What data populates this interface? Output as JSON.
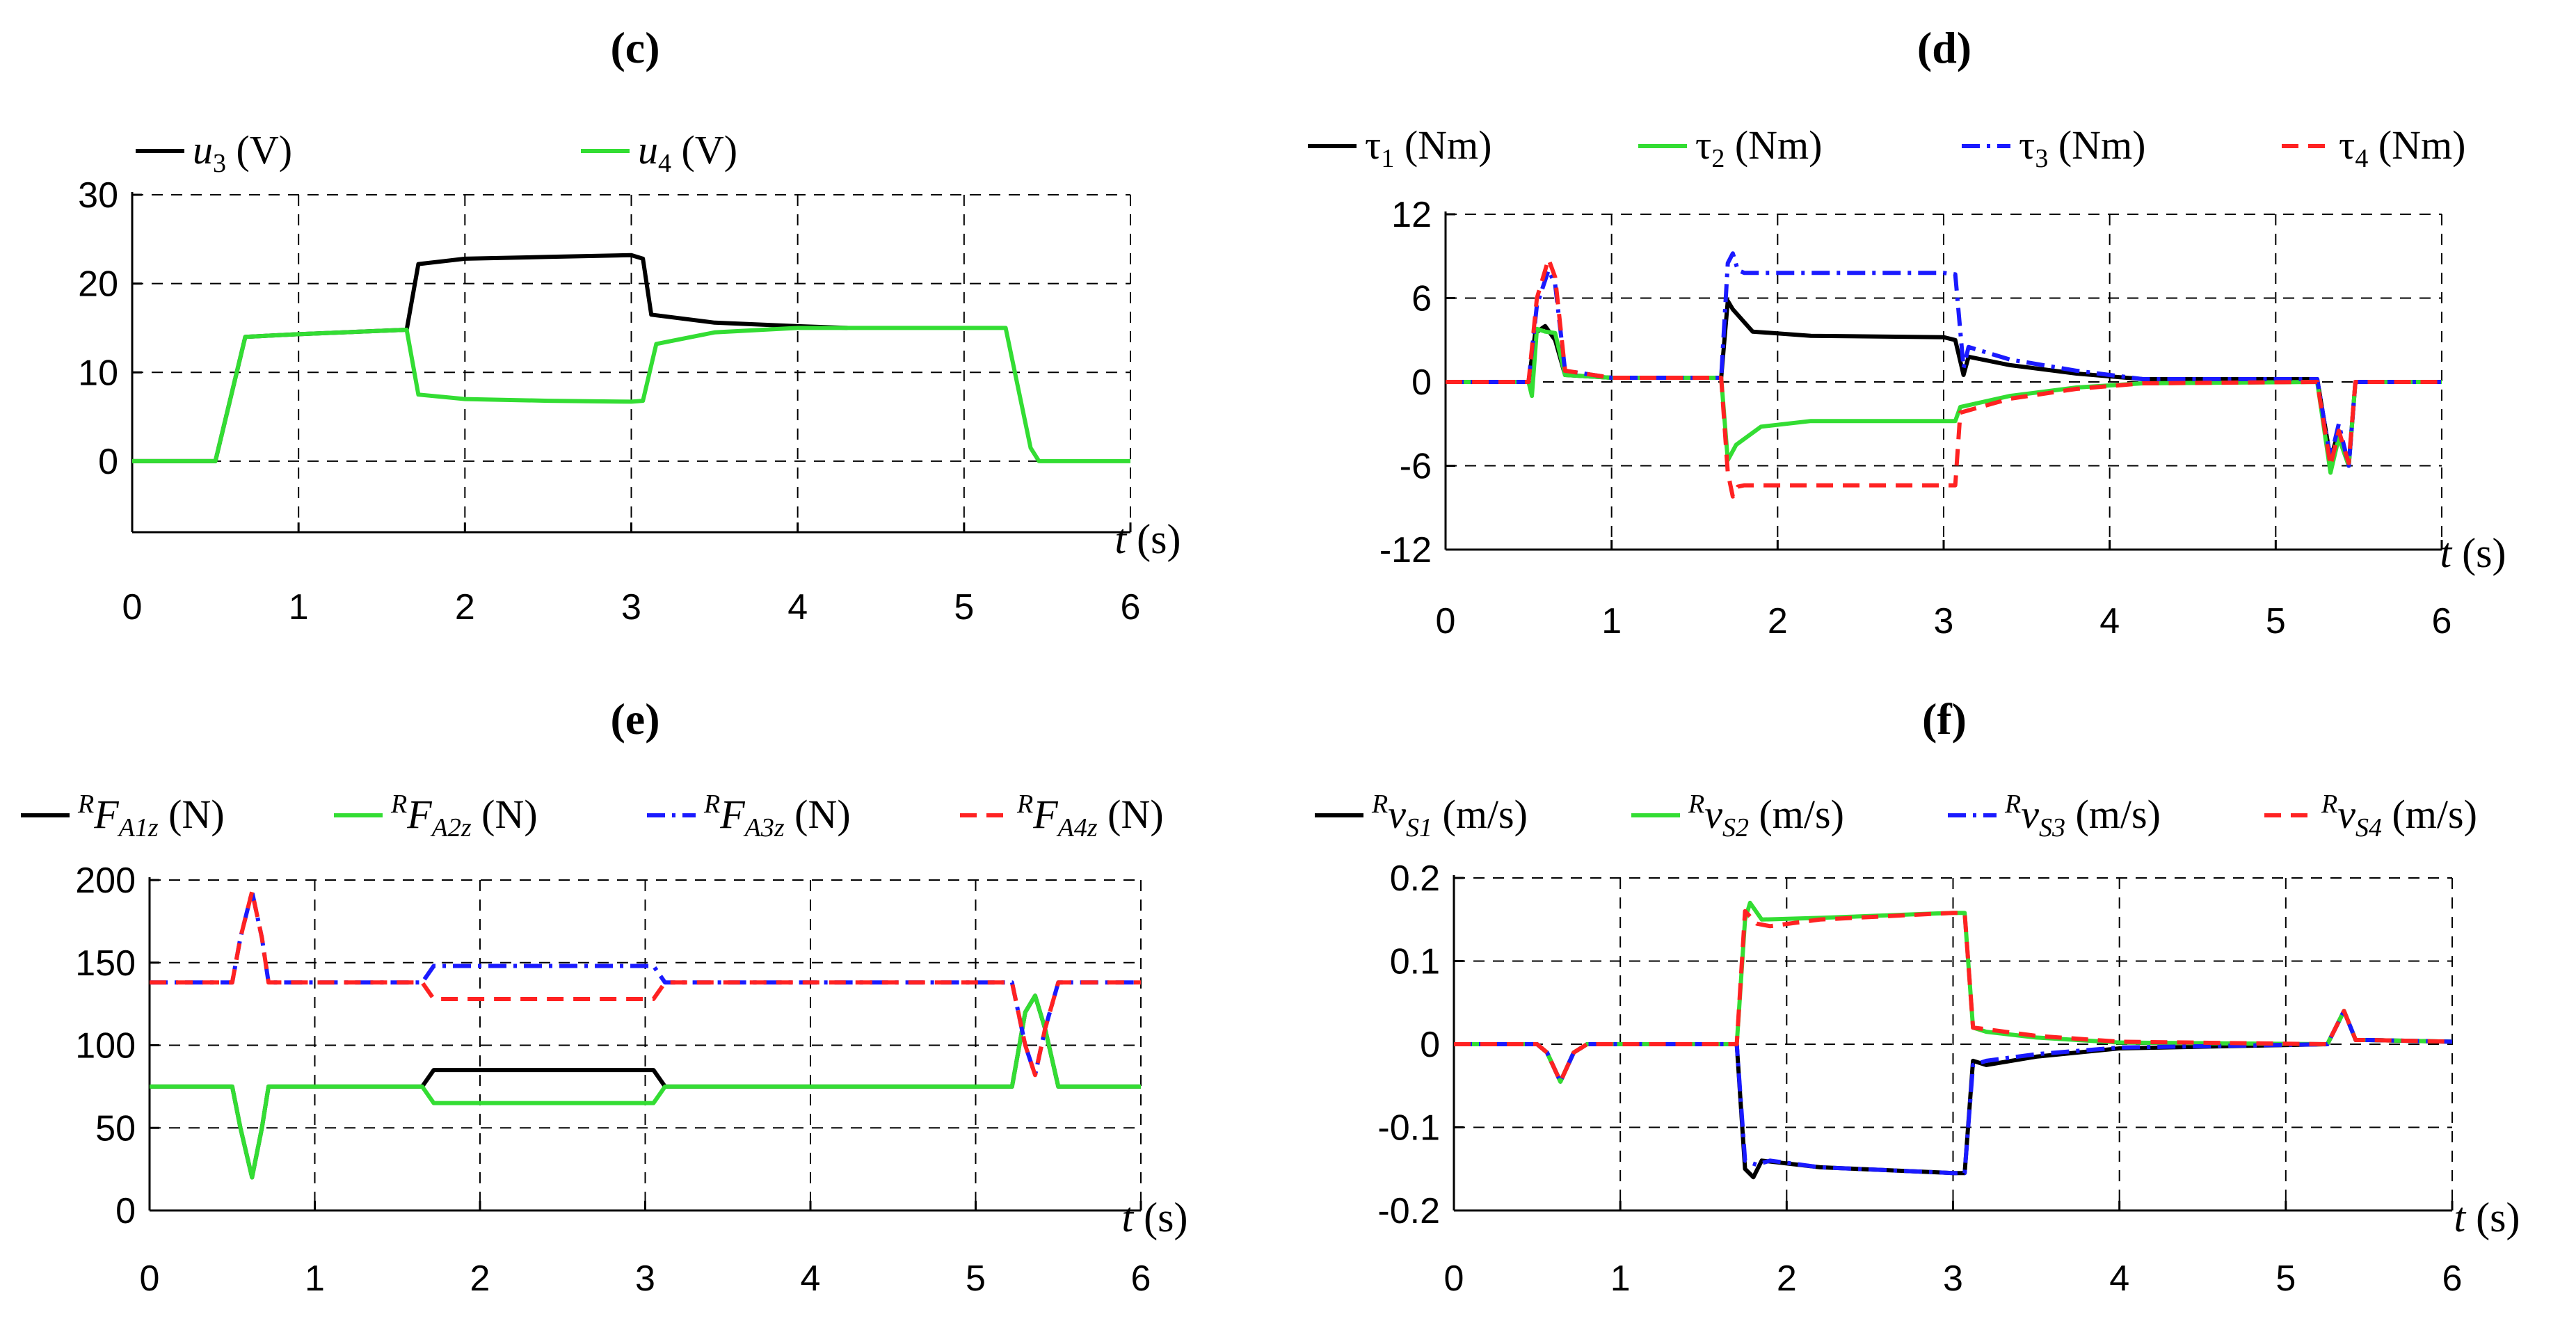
{
  "chart_data": [
    {
      "panel": "(c)",
      "type": "line",
      "title": "(c)",
      "xlabel": "t (s)",
      "ylabel": "",
      "xlim": [
        0,
        6
      ],
      "ylim": [
        -8,
        30
      ],
      "xticks": [
        0,
        1,
        2,
        3,
        4,
        5,
        6
      ],
      "xtick_labels": [
        "0",
        "1",
        "2",
        "3",
        "4",
        "5",
        "6"
      ],
      "yticks": [
        0,
        10,
        20,
        30
      ],
      "ytick_labels": [
        "0",
        "10",
        "20",
        "30"
      ],
      "grid": true,
      "legend_position": "top",
      "series": [
        {
          "name": "u3 (V)",
          "legend_main": "u",
          "legend_sub": "3",
          "legend_unit": " (V)",
          "color": "#000000",
          "dash": "solid",
          "x": [
            0,
            0.5,
            0.68,
            1.0,
            1.65,
            1.72,
            2.0,
            2.5,
            3.0,
            3.07,
            3.12,
            3.5,
            4.0,
            4.3
          ],
          "y": [
            0,
            0,
            14,
            14.3,
            14.8,
            22.2,
            22.8,
            23.0,
            23.2,
            22.8,
            16.5,
            15.6,
            15.2,
            15.0
          ]
        },
        {
          "name": "u4 (V)",
          "legend_main": "u",
          "legend_sub": "4",
          "legend_unit": " (V)",
          "color": "#33dd33",
          "dash": "solid",
          "x": [
            0,
            0.5,
            0.68,
            1.0,
            1.65,
            1.72,
            2.0,
            2.5,
            3.0,
            3.07,
            3.15,
            3.5,
            4.0,
            5.25,
            5.4,
            5.45,
            6.0
          ],
          "y": [
            0,
            0,
            14,
            14.3,
            14.8,
            7.5,
            7.0,
            6.8,
            6.7,
            6.8,
            13.2,
            14.5,
            15.0,
            15.0,
            1.5,
            0,
            0
          ]
        }
      ]
    },
    {
      "panel": "(d)",
      "type": "line",
      "title": "(d)",
      "xlabel": "t (s)",
      "ylabel": "",
      "xlim": [
        0,
        6
      ],
      "ylim": [
        -12,
        12
      ],
      "xticks": [
        0,
        1,
        2,
        3,
        4,
        5,
        6
      ],
      "xtick_labels": [
        "0",
        "1",
        "2",
        "3",
        "4",
        "5",
        "6"
      ],
      "yticks": [
        -12,
        -6,
        0,
        6,
        12
      ],
      "ytick_labels": [
        "-12",
        "-6",
        "0",
        "6",
        "12"
      ],
      "grid": true,
      "legend_position": "top",
      "series": [
        {
          "name": "τ1 (Nm)",
          "legend_main": "τ",
          "legend_sub": "1",
          "legend_unit": " (Nm)",
          "color": "#000000",
          "dash": "solid",
          "x": [
            0,
            0.5,
            0.54,
            0.6,
            0.66,
            0.72,
            1.0,
            1.66,
            1.7,
            1.73,
            1.85,
            2.2,
            3.0,
            3.07,
            3.12,
            3.15,
            3.4,
            3.8,
            4.2,
            5.25,
            5.33,
            5.38,
            5.44,
            5.48,
            6.0
          ],
          "y": [
            0,
            0,
            3.5,
            4.0,
            3.0,
            0.5,
            0.3,
            0.3,
            5.8,
            5.2,
            3.6,
            3.3,
            3.2,
            3.0,
            0.5,
            1.8,
            1.2,
            0.6,
            0.2,
            0.2,
            -5.5,
            -3.5,
            -6.0,
            0,
            0
          ]
        },
        {
          "name": "τ2 (Nm)",
          "legend_main": "τ",
          "legend_sub": "2",
          "legend_unit": " (Nm)",
          "color": "#33dd33",
          "dash": "solid",
          "x": [
            0,
            0.5,
            0.52,
            0.55,
            0.6,
            0.66,
            0.72,
            1.0,
            1.66,
            1.7,
            1.75,
            1.9,
            2.2,
            3.0,
            3.07,
            3.1,
            3.4,
            3.8,
            4.2,
            5.25,
            5.33,
            5.38,
            5.44,
            5.48,
            6.0
          ],
          "y": [
            0,
            0,
            -1.0,
            3.8,
            3.6,
            3.5,
            0.5,
            0.3,
            0.3,
            -5.6,
            -4.5,
            -3.2,
            -2.8,
            -2.8,
            -2.8,
            -1.8,
            -1.0,
            -0.4,
            -0.1,
            0,
            -6.5,
            -4.0,
            -6.0,
            0,
            0
          ]
        },
        {
          "name": "τ3 (Nm)",
          "legend_main": "τ",
          "legend_sub": "3",
          "legend_unit": " (Nm)",
          "color": "#1a1aff",
          "dash": "dashdot",
          "x": [
            0,
            0.5,
            0.55,
            0.62,
            0.66,
            0.72,
            1.0,
            1.66,
            1.7,
            1.73,
            1.76,
            1.8,
            2.2,
            3.0,
            3.07,
            3.12,
            3.15,
            3.4,
            3.8,
            4.2,
            5.25,
            5.33,
            5.38,
            5.44,
            5.48,
            6.0
          ],
          "y": [
            0,
            0,
            5.5,
            8.0,
            7.0,
            0.8,
            0.3,
            0.3,
            8.5,
            9.2,
            8.0,
            7.8,
            7.8,
            7.8,
            7.7,
            1.0,
            2.5,
            1.6,
            0.8,
            0.2,
            0.2,
            -5.5,
            -3.0,
            -6.0,
            0,
            0
          ]
        },
        {
          "name": "τ4 (Nm)",
          "legend_main": "τ",
          "legend_sub": "4",
          "legend_unit": " (Nm)",
          "color": "#ff2222",
          "dash": "dashed",
          "x": [
            0,
            0.5,
            0.55,
            0.62,
            0.66,
            0.72,
            1.0,
            1.66,
            1.7,
            1.73,
            1.76,
            1.8,
            2.2,
            3.0,
            3.07,
            3.1,
            3.4,
            3.8,
            4.2,
            5.25,
            5.33,
            5.38,
            5.44,
            5.48,
            6.0
          ],
          "y": [
            0,
            0,
            6.0,
            8.8,
            7.5,
            0.8,
            0.3,
            0.3,
            -6.5,
            -8.2,
            -7.5,
            -7.4,
            -7.4,
            -7.4,
            -7.4,
            -2.2,
            -1.2,
            -0.5,
            -0.1,
            0,
            -6.0,
            -3.5,
            -5.8,
            0,
            0
          ]
        }
      ]
    },
    {
      "panel": "(e)",
      "type": "line",
      "title": "(e)",
      "xlabel": "t (s)",
      "ylabel": "",
      "xlim": [
        0,
        6
      ],
      "ylim": [
        0,
        200
      ],
      "xticks": [
        0,
        1,
        2,
        3,
        4,
        5,
        6
      ],
      "xtick_labels": [
        "0",
        "1",
        "2",
        "3",
        "4",
        "5",
        "6"
      ],
      "yticks": [
        0,
        50,
        100,
        150,
        200
      ],
      "ytick_labels": [
        "0",
        "50",
        "100",
        "150",
        "200"
      ],
      "grid": true,
      "legend_position": "top",
      "series": [
        {
          "name": "RFA1z (N)",
          "legend_pre": "R",
          "legend_main": "F",
          "legend_sub": "A1z",
          "legend_unit": " (N)",
          "color": "#000000",
          "dash": "solid",
          "x": [
            0,
            0.5,
            0.55,
            0.62,
            0.68,
            0.72,
            1.65,
            1.72,
            3.05,
            3.12,
            5.22,
            5.3,
            5.36,
            5.42,
            5.5,
            6.0
          ],
          "y": [
            75,
            75,
            50,
            20,
            50,
            75,
            75,
            85,
            85,
            75,
            75,
            120,
            130,
            110,
            75,
            75
          ]
        },
        {
          "name": "RFA2z (N)",
          "legend_pre": "R",
          "legend_main": "F",
          "legend_sub": "A2z",
          "legend_unit": " (N)",
          "color": "#33dd33",
          "dash": "solid",
          "x": [
            0,
            0.5,
            0.55,
            0.62,
            0.68,
            0.72,
            1.65,
            1.72,
            3.05,
            3.12,
            5.22,
            5.3,
            5.36,
            5.42,
            5.5,
            6.0
          ],
          "y": [
            75,
            75,
            50,
            20,
            50,
            75,
            75,
            65,
            65,
            75,
            75,
            120,
            130,
            110,
            75,
            75
          ]
        },
        {
          "name": "RFA3z (N)",
          "legend_pre": "R",
          "legend_main": "F",
          "legend_sub": "A3z",
          "legend_unit": " (N)",
          "color": "#1a1aff",
          "dash": "dashdot",
          "x": [
            0,
            0.5,
            0.55,
            0.62,
            0.68,
            0.72,
            1.65,
            1.72,
            3.05,
            3.12,
            5.22,
            5.3,
            5.36,
            5.42,
            5.5,
            6.0
          ],
          "y": [
            138,
            138,
            165,
            193,
            165,
            138,
            138,
            148,
            148,
            138,
            138,
            100,
            82,
            110,
            138,
            138
          ]
        },
        {
          "name": "RFA4z (N)",
          "legend_pre": "R",
          "legend_main": "F",
          "legend_sub": "A4z",
          "legend_unit": " (N)",
          "color": "#ff2222",
          "dash": "dashed",
          "x": [
            0,
            0.5,
            0.55,
            0.62,
            0.68,
            0.72,
            1.65,
            1.72,
            3.05,
            3.12,
            5.22,
            5.3,
            5.36,
            5.42,
            5.5,
            6.0
          ],
          "y": [
            138,
            138,
            165,
            193,
            165,
            138,
            138,
            128,
            128,
            138,
            138,
            100,
            82,
            110,
            138,
            138
          ]
        }
      ]
    },
    {
      "panel": "(f)",
      "type": "line",
      "title": "(f)",
      "xlabel": "t (s)",
      "ylabel": "",
      "xlim": [
        0,
        6
      ],
      "ylim": [
        -0.2,
        0.2
      ],
      "xticks": [
        0,
        1,
        2,
        3,
        4,
        5,
        6
      ],
      "xtick_labels": [
        "0",
        "1",
        "2",
        "3",
        "4",
        "5",
        "6"
      ],
      "yticks": [
        -0.2,
        -0.1,
        0,
        0.1,
        0.2
      ],
      "ytick_labels": [
        "-0.2",
        "-0.1",
        "0",
        "0.1",
        "0.2"
      ],
      "grid": true,
      "legend_position": "top",
      "series": [
        {
          "name": "RvS1 (m/s)",
          "legend_pre": "R",
          "legend_main": "v",
          "legend_sub": "S1",
          "legend_unit": " (m/s)",
          "color": "#000000",
          "dash": "solid",
          "x": [
            0,
            0.5,
            0.56,
            0.64,
            0.72,
            0.8,
            1.7,
            1.75,
            1.8,
            1.85,
            2.2,
            3.0,
            3.07,
            3.12,
            3.2,
            3.5,
            4.0,
            5.25,
            5.3,
            5.35,
            5.42,
            5.5,
            6.0
          ],
          "y": [
            0,
            0,
            -0.01,
            -0.045,
            -0.01,
            0,
            0,
            -0.15,
            -0.16,
            -0.14,
            -0.148,
            -0.155,
            -0.155,
            -0.02,
            -0.025,
            -0.015,
            -0.005,
            0,
            0.02,
            0.04,
            0.005,
            0.005,
            0.003
          ]
        },
        {
          "name": "RvS2 (m/s)",
          "legend_pre": "R",
          "legend_main": "v",
          "legend_sub": "S2",
          "legend_unit": " (m/s)",
          "color": "#33dd33",
          "dash": "solid",
          "x": [
            0,
            0.5,
            0.56,
            0.64,
            0.72,
            0.8,
            1.7,
            1.75,
            1.78,
            1.85,
            2.2,
            3.0,
            3.07,
            3.12,
            3.2,
            3.5,
            4.0,
            5.25,
            5.3,
            5.35,
            5.42,
            5.5,
            6.0
          ],
          "y": [
            0,
            0,
            -0.01,
            -0.045,
            -0.01,
            0,
            0,
            0.15,
            0.17,
            0.15,
            0.152,
            0.158,
            0.158,
            0.02,
            0.015,
            0.008,
            0.002,
            0,
            0.02,
            0.04,
            0.005,
            0.005,
            0.003
          ]
        },
        {
          "name": "RvS3 (m/s)",
          "legend_pre": "R",
          "legend_main": "v",
          "legend_sub": "S3",
          "legend_unit": " (m/s)",
          "color": "#1a1aff",
          "dash": "dashdot",
          "x": [
            0,
            0.5,
            0.56,
            0.64,
            0.72,
            0.8,
            1.7,
            1.75,
            1.82,
            1.9,
            2.2,
            3.0,
            3.07,
            3.12,
            3.2,
            3.5,
            4.0,
            5.25,
            5.3,
            5.35,
            5.42,
            5.5,
            6.0
          ],
          "y": [
            0,
            0,
            -0.01,
            -0.045,
            -0.01,
            0,
            0,
            -0.14,
            -0.145,
            -0.14,
            -0.148,
            -0.155,
            -0.155,
            -0.025,
            -0.02,
            -0.012,
            -0.004,
            0,
            0.02,
            0.04,
            0.005,
            0.005,
            0.003
          ]
        },
        {
          "name": "RvS4 (m/s)",
          "legend_pre": "R",
          "legend_main": "v",
          "legend_sub": "S4",
          "legend_unit": " (m/s)",
          "color": "#ff2222",
          "dash": "dashed",
          "x": [
            0,
            0.5,
            0.56,
            0.64,
            0.72,
            0.8,
            1.7,
            1.75,
            1.82,
            1.9,
            2.2,
            3.0,
            3.07,
            3.12,
            3.2,
            3.5,
            4.0,
            5.25,
            5.3,
            5.35,
            5.42,
            5.5,
            6.0
          ],
          "y": [
            0,
            0,
            -0.01,
            -0.045,
            -0.01,
            0,
            0,
            0.16,
            0.145,
            0.142,
            0.15,
            0.158,
            0.158,
            0.02,
            0.018,
            0.01,
            0.003,
            0,
            0.02,
            0.04,
            0.005,
            0.005,
            0.003
          ]
        }
      ]
    }
  ]
}
